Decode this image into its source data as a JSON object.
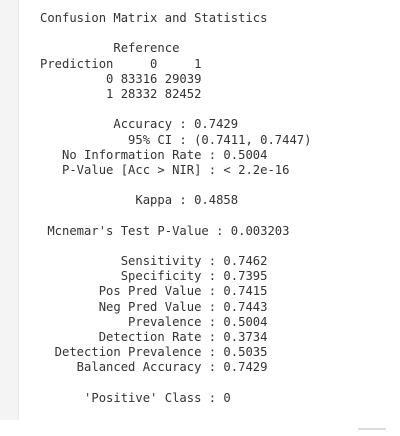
{
  "console": {
    "title": "Confusion Matrix and Statistics",
    "matrix": {
      "reference_header": "          Reference",
      "prediction_header": "Prediction     0     1",
      "row0": "         0 83316 29039",
      "row1": "         1 28332 82452"
    },
    "stats": {
      "accuracy": "          Accuracy : 0.7429",
      "ci": "            95% CI : (0.7411, 0.7447)",
      "nir": "   No Information Rate : 0.5004",
      "pvalue": "   P-Value [Acc > NIR] : < 2.2e-16",
      "kappa": "             Kappa : 0.4858",
      "mcnemar": " Mcnemar's Test P-Value : 0.003203",
      "sensitivity": "           Sensitivity : 0.7462",
      "specificity": "           Specificity : 0.7395",
      "pos_pred": "        Pos Pred Value : 0.7415",
      "neg_pred": "        Neg Pred Value : 0.7443",
      "prevalence": "            Prevalence : 0.5004",
      "detection_rate": "        Detection Rate : 0.3734",
      "detection_prevalence": "  Detection Prevalence : 0.5035",
      "balanced_accuracy": "     Balanced Accuracy : 0.7429",
      "positive_class": "      'Positive' Class : 0"
    }
  }
}
